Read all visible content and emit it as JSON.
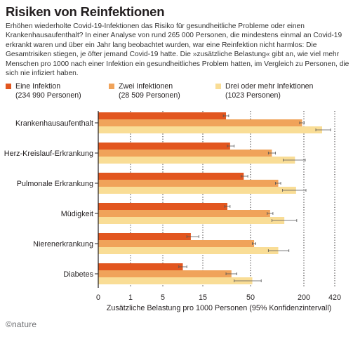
{
  "title": "Risiken von Reinfektionen",
  "description": "Erhöhen wiederholte Covid-19-Infektionen das Risiko für gesundheitliche Probleme oder einen Krankenhausaufenthalt? In einer Analyse von rund 265 000 Personen, die mindestens einmal an Covid-19 erkrankt waren und über ein Jahr lang beobachtet wurden, war eine Reinfektion nicht harmlos: Die Gesamtrisiken stiegen, je öfter jemand Covid-19 hatte. Die »zusätzliche Belastung« gibt an, wie viel mehr Menschen pro 1000 nach einer Infektion ein gesundheitliches Problem hatten, im Vergleich zu Personen, die sich nie infiziert haben.",
  "source": "©nature",
  "colors": {
    "series1": "#e2561f",
    "series2": "#f0a35a",
    "series3": "#f9dd96",
    "error": "#555555",
    "grid": "#231f20"
  },
  "chart_data": {
    "type": "bar",
    "orientation": "horizontal",
    "xlabel": "Zusätzliche Belastung pro 1000 Personen (95% Konfidenzintervall)",
    "x_scale": "broken",
    "x_ticks": [
      0,
      1,
      5,
      15,
      50,
      200,
      420
    ],
    "x_tick_labels": [
      "0",
      "1",
      "5",
      "15",
      "50",
      "200",
      "420"
    ],
    "grid": "dotted vertical at ticks",
    "legend_position": "top",
    "categories": [
      "Krankenhausaufenthalt",
      "Herz-Kreislauf-Erkrankung",
      "Pulmonale Erkrankung",
      "Müdigkeit",
      "Nierenerkrankung",
      "Diabetes"
    ],
    "series": [
      {
        "name": "Eine Infektion",
        "subtitle": "(234 990 Personen)",
        "values": [
          32,
          35,
          45,
          33,
          12,
          10
        ],
        "ci_low": [
          30,
          33,
          43,
          31,
          11,
          9
        ],
        "ci_high": [
          34,
          38,
          48,
          35,
          14,
          11
        ]
      },
      {
        "name": "Zwei Infektionen",
        "subtitle": "(28 509 Personen)",
        "values": [
          195,
          110,
          128,
          105,
          60,
          36
        ],
        "ci_low": [
          188,
          100,
          120,
          97,
          55,
          32
        ],
        "ci_high": [
          202,
          120,
          135,
          113,
          65,
          40
        ]
      },
      {
        "name": "Drei oder mehr Infektionen",
        "subtitle": "(1023 Personen)",
        "values": [
          330,
          175,
          178,
          145,
          128,
          55
        ],
        "ci_low": [
          285,
          142,
          140,
          110,
          100,
          38
        ],
        "ci_high": [
          390,
          210,
          215,
          180,
          158,
          80
        ]
      }
    ]
  }
}
